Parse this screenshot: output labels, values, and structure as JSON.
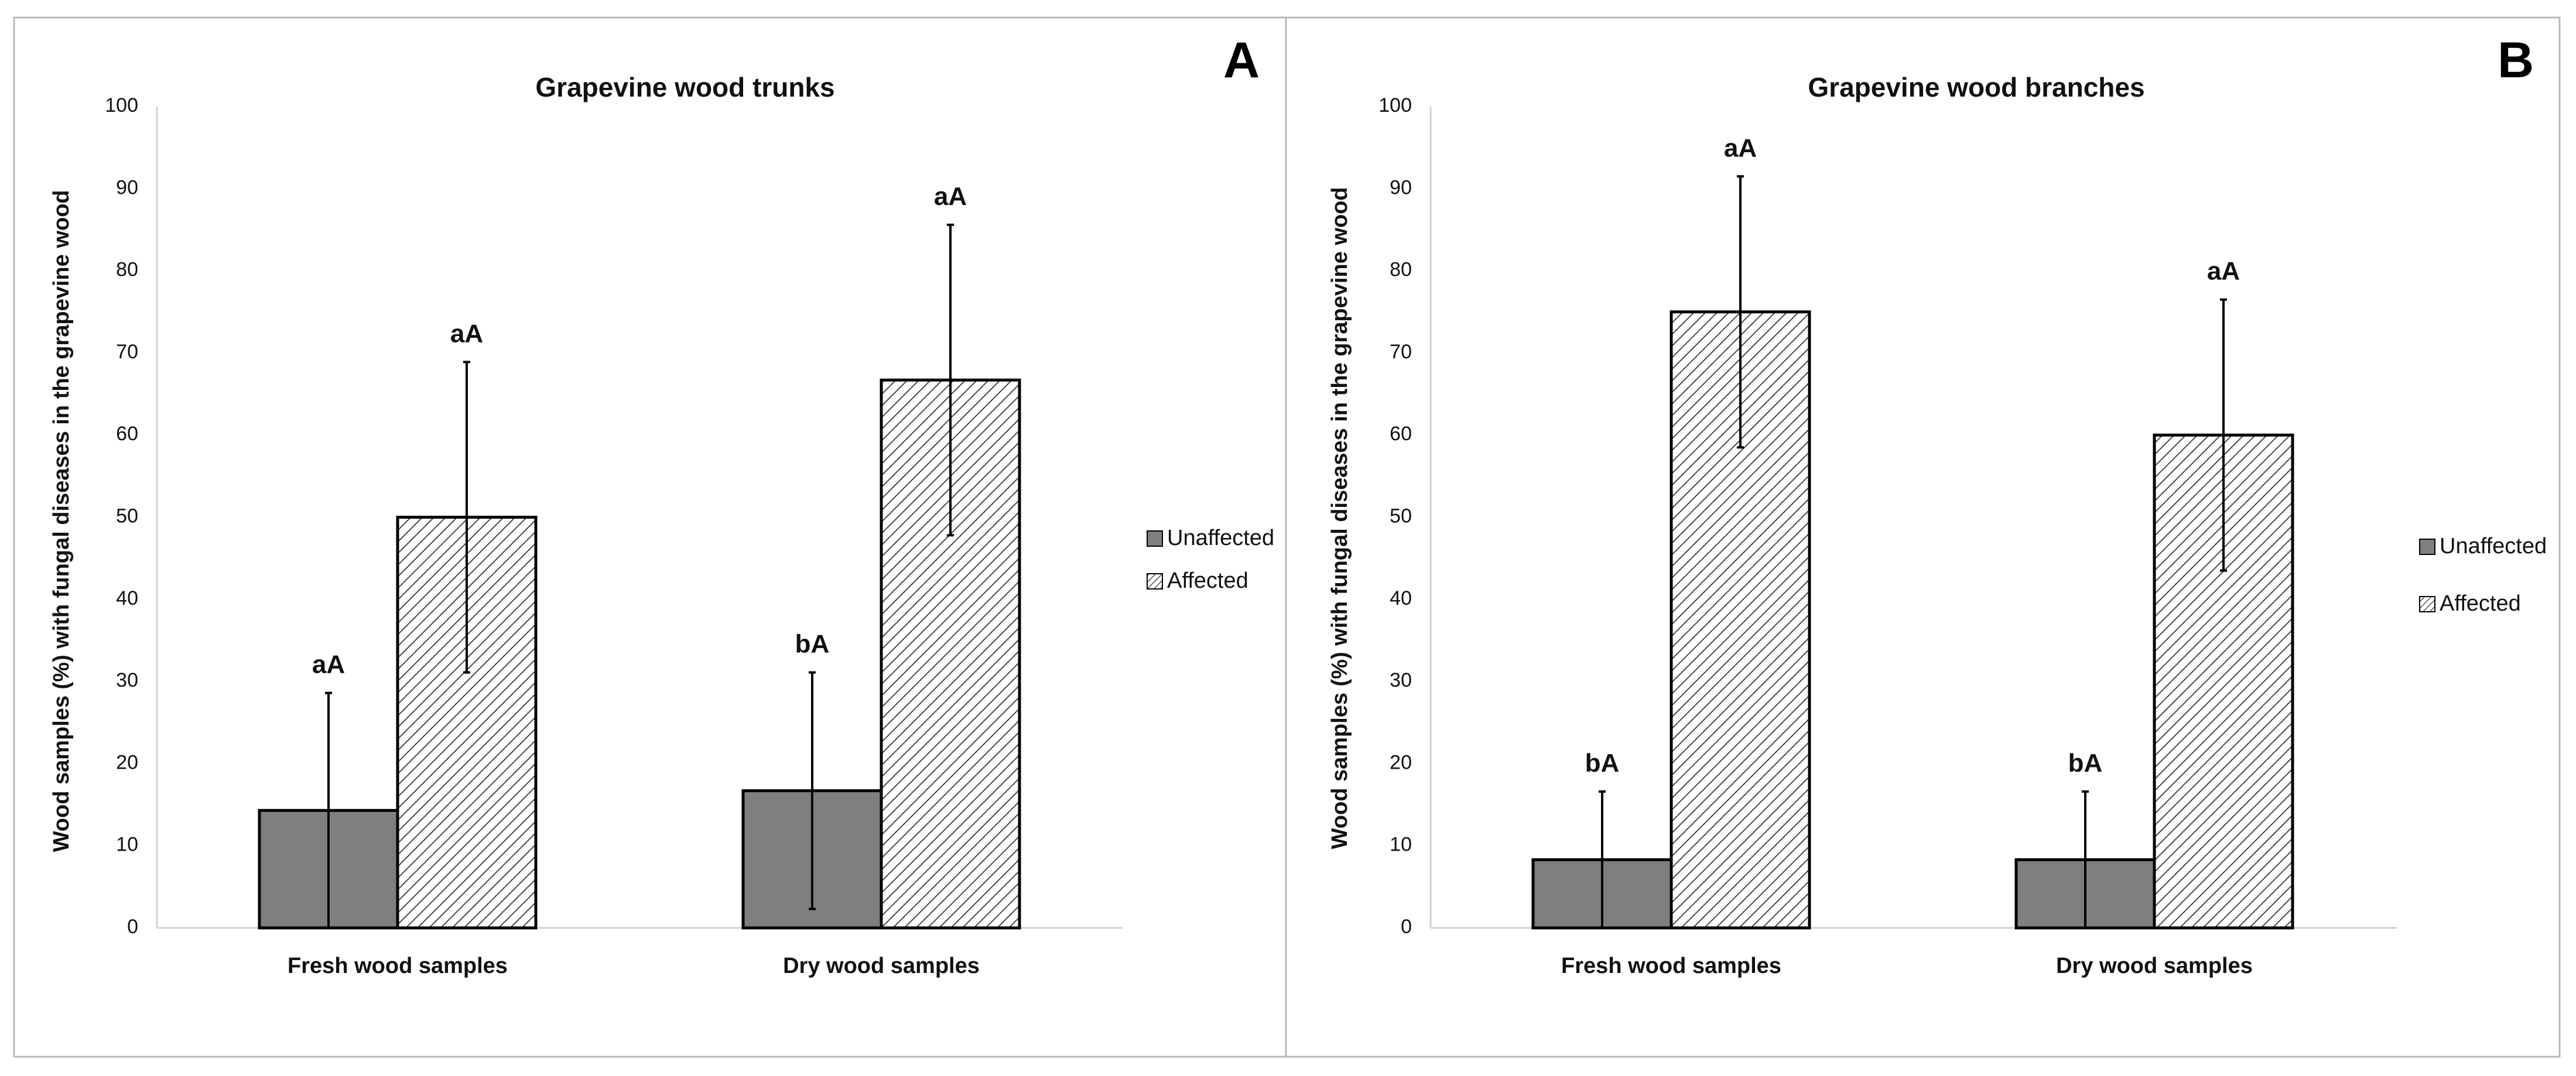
{
  "panels": [
    {
      "label": "A",
      "legend": [
        "Unaffected",
        "Affected"
      ]
    },
    {
      "label": "B",
      "legend": [
        "Unaffected",
        "Affected"
      ]
    }
  ],
  "chart_data": [
    {
      "type": "bar",
      "panel": "A",
      "title": "Grapevine wood trunks",
      "xlabel": "",
      "ylabel": "Wood samples (%) with fungal diseases in the grapevine wood",
      "ylim": [
        0,
        100
      ],
      "yticks": [
        0,
        10,
        20,
        30,
        40,
        50,
        60,
        70,
        80,
        90,
        100
      ],
      "categories": [
        "Fresh wood samples",
        "Dry wood samples"
      ],
      "series": [
        {
          "name": "Unaffected",
          "values": [
            14.3,
            16.7
          ],
          "errors": [
            14.3,
            14.4
          ],
          "labels": [
            "aA",
            "bA"
          ],
          "fill": "#7f7f7f",
          "pattern": "solid"
        },
        {
          "name": "Affected",
          "values": [
            50.0,
            66.7
          ],
          "errors": [
            18.9,
            18.9
          ],
          "labels": [
            "aA",
            "aA"
          ],
          "fill": "#ffffff",
          "pattern": "hatched"
        }
      ]
    },
    {
      "type": "bar",
      "panel": "B",
      "title": "Grapevine wood branches",
      "xlabel": "",
      "ylabel": "Wood samples (%) with fungal diseases in the grapevine wood",
      "ylim": [
        0,
        100
      ],
      "yticks": [
        0,
        10,
        20,
        30,
        40,
        50,
        60,
        70,
        80,
        90,
        100
      ],
      "categories": [
        "Fresh wood samples",
        "Dry wood samples"
      ],
      "series": [
        {
          "name": "Unaffected",
          "values": [
            8.3,
            8.3
          ],
          "errors": [
            8.3,
            8.3
          ],
          "labels": [
            "bA",
            "bA"
          ],
          "fill": "#7f7f7f",
          "pattern": "solid"
        },
        {
          "name": "Affected",
          "values": [
            75.0,
            60.0
          ],
          "errors": [
            16.5,
            16.5
          ],
          "labels": [
            "aA",
            "aA"
          ],
          "fill": "#ffffff",
          "pattern": "hatched"
        }
      ]
    }
  ]
}
